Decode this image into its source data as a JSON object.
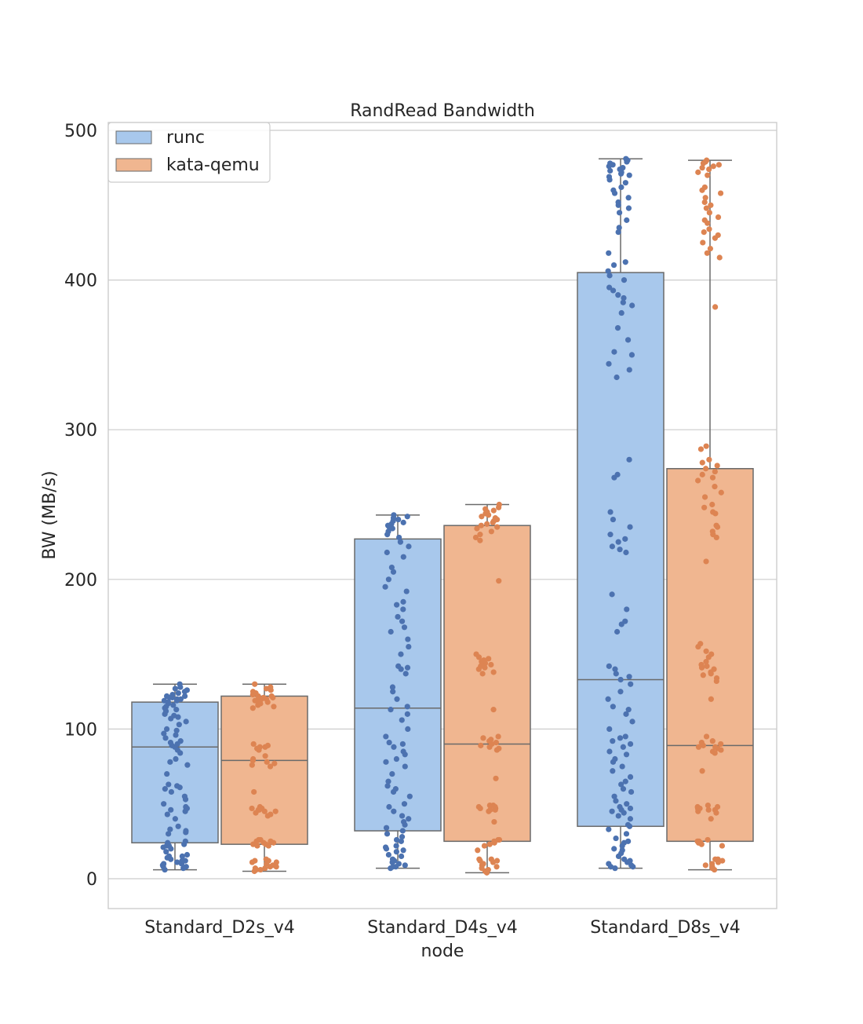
{
  "chart_data": {
    "type": "box",
    "title": "RandRead Bandwidth",
    "xlabel": "node",
    "ylabel": "BW (MB/s)",
    "ylim": [
      -20,
      505
    ],
    "yticks": [
      0,
      100,
      200,
      300,
      400,
      500
    ],
    "grid": true,
    "legend": {
      "placement": "top-left"
    },
    "categories": [
      "Standard_D2s_v4",
      "Standard_D4s_v4",
      "Standard_D8s_v4"
    ],
    "series": [
      {
        "name": "runc",
        "box_color": "#a8c8ec",
        "point_color": "#4c72b0",
        "stats": [
          {
            "whisker_low": 6,
            "q1": 24,
            "median": 88,
            "q3": 118,
            "whisker_high": 130
          },
          {
            "whisker_low": 7,
            "q1": 32,
            "median": 114,
            "q3": 227,
            "whisker_high": 243
          },
          {
            "whisker_low": 7,
            "q1": 35,
            "median": 133,
            "q3": 405,
            "whisker_high": 481
          }
        ],
        "points": [
          [
            6,
            7,
            8,
            8,
            9,
            10,
            10,
            11,
            12,
            12,
            13,
            14,
            15,
            15,
            16,
            18,
            20,
            21,
            22,
            22,
            23,
            24,
            25,
            30,
            31,
            32,
            33,
            35,
            40,
            43,
            45,
            46,
            47,
            47,
            48,
            50,
            53,
            55,
            58,
            60,
            61,
            62,
            63,
            70,
            76,
            78,
            80,
            84,
            86,
            88,
            89,
            90,
            91,
            92,
            94,
            96,
            97,
            99,
            100,
            103,
            105,
            107,
            108,
            109,
            110,
            112,
            113,
            114,
            115,
            116,
            117,
            118,
            119,
            119,
            120,
            120,
            121,
            121,
            122,
            122,
            123,
            124,
            125,
            126,
            127,
            128,
            130
          ],
          [
            7,
            8,
            8,
            9,
            10,
            11,
            12,
            13,
            15,
            16,
            18,
            19,
            20,
            21,
            22,
            25,
            26,
            28,
            30,
            32,
            34,
            36,
            38,
            40,
            42,
            45,
            48,
            50,
            55,
            58,
            60,
            62,
            65,
            70,
            75,
            78,
            80,
            83,
            85,
            88,
            90,
            91,
            95,
            100,
            106,
            110,
            113,
            115,
            120,
            125,
            128,
            137,
            140,
            141,
            142,
            150,
            155,
            160,
            165,
            168,
            172,
            175,
            180,
            183,
            185,
            192,
            195,
            200,
            205,
            208,
            215,
            218,
            222,
            225,
            228,
            230,
            232,
            234,
            235,
            236,
            237,
            238,
            239,
            240,
            241,
            242,
            243
          ],
          [
            7,
            8,
            8,
            9,
            10,
            11,
            12,
            13,
            15,
            17,
            19,
            20,
            22,
            24,
            25,
            27,
            30,
            33,
            35,
            36,
            40,
            42,
            44,
            45,
            46,
            47,
            48,
            50,
            52,
            55,
            58,
            60,
            63,
            65,
            68,
            72,
            75,
            78,
            80,
            83,
            85,
            88,
            90,
            92,
            94,
            95,
            100,
            105,
            110,
            113,
            115,
            120,
            125,
            130,
            133,
            135,
            137,
            140,
            142,
            165,
            170,
            172,
            180,
            190,
            218,
            220,
            222,
            225,
            227,
            230,
            235,
            240,
            245,
            268,
            270,
            280,
            335,
            340,
            344,
            350,
            352,
            360,
            368,
            378,
            383,
            385,
            388,
            390,
            393,
            395,
            400,
            403,
            406,
            410,
            412,
            418,
            432,
            435,
            440,
            445,
            448,
            450,
            452,
            455,
            458,
            460,
            462,
            465,
            467,
            469,
            470,
            471,
            472,
            473,
            474,
            475,
            476,
            477,
            478,
            479,
            480,
            481
          ]
        ]
      },
      {
        "name": "kata-qemu",
        "box_color": "#f0b690",
        "point_color": "#dd8452",
        "stats": [
          {
            "whisker_low": 5,
            "q1": 23,
            "median": 79,
            "q3": 122,
            "whisker_high": 130
          },
          {
            "whisker_low": 4,
            "q1": 25,
            "median": 90,
            "q3": 236,
            "whisker_high": 250
          },
          {
            "whisker_low": 6,
            "q1": 25,
            "median": 89,
            "q3": 274,
            "whisker_high": 480
          }
        ],
        "points": [
          [
            5,
            6,
            6,
            7,
            7,
            8,
            8,
            9,
            10,
            11,
            11,
            12,
            12,
            13,
            22,
            22,
            23,
            23,
            24,
            24,
            25,
            25,
            26,
            26,
            42,
            43,
            44,
            45,
            45,
            46,
            46,
            47,
            47,
            48,
            58,
            75,
            76,
            77,
            78,
            79,
            80,
            82,
            86,
            87,
            88,
            88,
            89,
            90,
            114,
            115,
            116,
            117,
            118,
            118,
            119,
            119,
            120,
            120,
            121,
            121,
            122,
            122,
            123,
            124,
            125,
            126,
            127,
            128,
            130
          ],
          [
            4,
            5,
            6,
            7,
            8,
            9,
            10,
            11,
            12,
            12,
            13,
            13,
            19,
            22,
            23,
            24,
            25,
            26,
            26,
            38,
            45,
            46,
            46,
            47,
            47,
            48,
            48,
            49,
            49,
            67,
            86,
            87,
            88,
            89,
            90,
            91,
            92,
            93,
            94,
            95,
            113,
            137,
            138,
            140,
            141,
            142,
            143,
            144,
            145,
            146,
            147,
            148,
            150,
            199,
            226,
            228,
            230,
            232,
            234,
            235,
            236,
            237,
            238,
            239,
            240,
            241,
            242,
            243,
            244,
            245,
            246,
            247,
            248,
            250
          ],
          [
            6,
            7,
            8,
            9,
            10,
            11,
            12,
            13,
            13,
            22,
            23,
            24,
            24,
            25,
            25,
            26,
            40,
            44,
            45,
            46,
            46,
            47,
            47,
            48,
            48,
            49,
            72,
            84,
            85,
            86,
            87,
            88,
            88,
            89,
            90,
            91,
            92,
            95,
            120,
            132,
            134,
            136,
            137,
            138,
            140,
            141,
            142,
            143,
            145,
            148,
            150,
            152,
            155,
            157,
            212,
            228,
            230,
            232,
            235,
            236,
            244,
            245,
            248,
            250,
            255,
            258,
            262,
            266,
            268,
            270,
            272,
            274,
            276,
            278,
            280,
            287,
            289,
            382,
            415,
            418,
            421,
            425,
            428,
            430,
            432,
            434,
            438,
            440,
            442,
            445,
            448,
            450,
            452,
            455,
            458,
            460,
            462,
            470,
            472,
            474,
            475,
            476,
            477,
            478,
            479,
            480
          ]
        ]
      }
    ]
  }
}
